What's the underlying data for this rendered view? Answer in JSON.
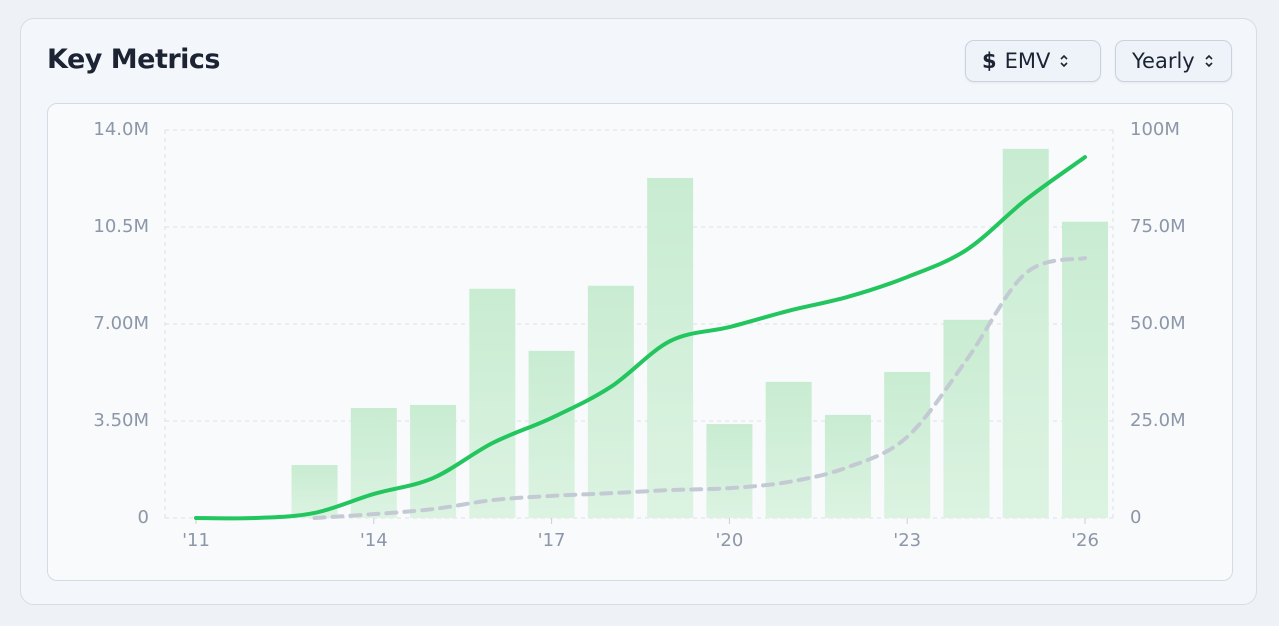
{
  "header": {
    "title": "Key Metrics"
  },
  "controls": [
    {
      "icon": "$",
      "label": "EMV"
    },
    {
      "label": "Yearly"
    }
  ],
  "chart_data": {
    "type": "bar",
    "categories": [
      "'11",
      null,
      null,
      "'14",
      null,
      null,
      "'17",
      null,
      null,
      "'20",
      null,
      null,
      "'23",
      null,
      null,
      "'26"
    ],
    "series": [
      {
        "type": "bar",
        "color": "#bfe8c9",
        "values": [
          0,
          0,
          1910000,
          3970000,
          4080000,
          8270000,
          6030000,
          8380000,
          12270000,
          3390000,
          4910000,
          3720000,
          5270000,
          7150000,
          13320000,
          10690000
        ]
      },
      {
        "type": "line",
        "axis": "y2",
        "color": "#22c55e",
        "values": [
          0,
          0,
          1300000,
          6200000,
          10300000,
          19300000,
          25800000,
          33800000,
          45600000,
          49200000,
          53400000,
          57000000,
          62100000,
          69100000,
          82000000,
          93000000
        ]
      },
      {
        "type": "line",
        "axis": "y2",
        "color": "#c4cad4",
        "dashed": true,
        "values": [
          null,
          null,
          0,
          1000000,
          2300000,
          4600000,
          5700000,
          6400000,
          7200000,
          7700000,
          9300000,
          13100000,
          20900000,
          40700000,
          63100000,
          67000000
        ]
      }
    ],
    "ylim": [
      0,
      14000000
    ],
    "yticks": [
      0,
      {
        "value": 3500000,
        "label": "3.50M"
      },
      {
        "value": 7000000,
        "label": "7.00M"
      },
      {
        "value": 10500000,
        "label": "10.5M"
      },
      {
        "value": 14000000,
        "label": "14.0M"
      }
    ],
    "y2lim": [
      0,
      100000000
    ],
    "y2ticks": [
      0,
      {
        "value": 25000000,
        "label": "25.0M"
      },
      {
        "value": 50000000,
        "label": "50.0M"
      },
      {
        "value": 75000000,
        "label": "75.0M"
      },
      {
        "value": 100000000,
        "label": "100M"
      }
    ],
    "grid": true
  }
}
